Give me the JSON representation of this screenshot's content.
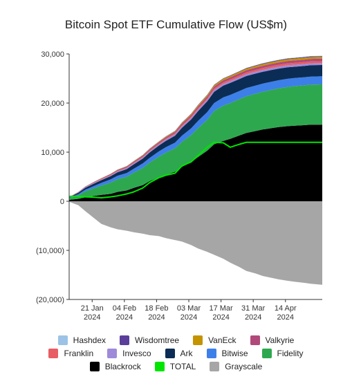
{
  "chart_data": {
    "type": "area",
    "title": "Bitcoin Spot ETF Cumulative Flow (US$m)",
    "xlabel": "",
    "ylabel": "",
    "ylim": [
      -20000,
      30000
    ],
    "yticks": [
      30000,
      20000,
      10000,
      0,
      -10000,
      -20000
    ],
    "ytick_labels": [
      "30,000",
      "20,000",
      "10,000",
      "0",
      "(10,000)",
      "(20,000)"
    ],
    "xlim": [
      "2024-01-11",
      "2024-04-30"
    ],
    "xticks": [
      {
        "date": "2024-01-21",
        "line1": "21 Jan",
        "line2": "2024"
      },
      {
        "date": "2024-02-04",
        "line1": "04 Feb",
        "line2": "2024"
      },
      {
        "date": "2024-02-18",
        "line1": "18 Feb",
        "line2": "2024"
      },
      {
        "date": "2024-03-03",
        "line1": "03 Mar",
        "line2": "2024"
      },
      {
        "date": "2024-03-17",
        "line1": "17 Mar",
        "line2": "2024"
      },
      {
        "date": "2024-03-31",
        "line1": "31 Mar",
        "line2": "2024"
      },
      {
        "date": "2024-04-14",
        "line1": "14 Apr",
        "line2": "2024"
      }
    ],
    "grid": false,
    "legend_position": "bottom",
    "dates": [
      "2024-01-11",
      "2024-01-15",
      "2024-01-18",
      "2024-01-22",
      "2024-01-25",
      "2024-01-29",
      "2024-02-01",
      "2024-02-05",
      "2024-02-08",
      "2024-02-12",
      "2024-02-15",
      "2024-02-19",
      "2024-02-22",
      "2024-02-26",
      "2024-02-29",
      "2024-03-04",
      "2024-03-07",
      "2024-03-11",
      "2024-03-14",
      "2024-03-18",
      "2024-03-21",
      "2024-03-25",
      "2024-03-28",
      "2024-04-01",
      "2024-04-04",
      "2024-04-08",
      "2024-04-11",
      "2024-04-15",
      "2024-04-18",
      "2024-04-22",
      "2024-04-25",
      "2024-04-30"
    ],
    "series": [
      {
        "name": "Blackrock",
        "color": "#000000",
        "values": [
          300,
          500,
          800,
          1100,
          1300,
          1500,
          1900,
          2200,
          2700,
          3300,
          4100,
          4900,
          5400,
          6000,
          7000,
          8000,
          9000,
          10300,
          11600,
          12300,
          12700,
          13400,
          13900,
          14300,
          14600,
          14900,
          15100,
          15300,
          15400,
          15500,
          15600,
          15600
        ]
      },
      {
        "name": "Fidelity",
        "color": "#2ea84f",
        "values": [
          300,
          700,
          1200,
          1600,
          1900,
          2300,
          2600,
          2800,
          3100,
          3500,
          3800,
          4200,
          4500,
          4800,
          5100,
          5500,
          5900,
          6300,
          6800,
          7200,
          7300,
          7400,
          7500,
          7600,
          7700,
          7800,
          7900,
          8000,
          8050,
          8100,
          8150,
          8200
        ]
      },
      {
        "name": "Bitwise",
        "color": "#3d7fe8",
        "values": [
          100,
          250,
          350,
          450,
          550,
          650,
          700,
          750,
          800,
          900,
          950,
          1050,
          1100,
          1150,
          1250,
          1350,
          1450,
          1550,
          1600,
          1650,
          1650,
          1650,
          1650,
          1650,
          1650,
          1650,
          1650,
          1650,
          1650,
          1650,
          1650,
          1650
        ]
      },
      {
        "name": "Ark",
        "color": "#0b2d55",
        "values": [
          100,
          300,
          400,
          500,
          550,
          650,
          700,
          800,
          900,
          1000,
          1100,
          1200,
          1300,
          1400,
          1600,
          1800,
          2000,
          2200,
          2300,
          2400,
          2450,
          2450,
          2450,
          2450,
          2400,
          2400,
          2350,
          2350,
          2300,
          2300,
          2300,
          2300
        ]
      },
      {
        "name": "Invesco",
        "color": "#9f8ad9",
        "values": [
          30,
          60,
          90,
          120,
          140,
          160,
          180,
          200,
          210,
          220,
          230,
          240,
          260,
          280,
          300,
          310,
          320,
          330,
          340,
          350,
          360,
          370,
          380,
          390,
          400,
          400,
          400,
          400,
          400,
          400,
          400,
          400
        ]
      },
      {
        "name": "Franklin",
        "color": "#e85d64",
        "values": [
          20,
          40,
          60,
          80,
          90,
          100,
          110,
          120,
          130,
          140,
          150,
          160,
          180,
          200,
          220,
          240,
          260,
          280,
          300,
          320,
          330,
          340,
          350,
          360,
          360,
          370,
          370,
          380,
          380,
          390,
          390,
          390
        ]
      },
      {
        "name": "Valkyrie",
        "color": "#b0497a",
        "values": [
          20,
          40,
          70,
          100,
          120,
          140,
          160,
          180,
          200,
          220,
          240,
          260,
          280,
          300,
          320,
          340,
          360,
          380,
          400,
          420,
          430,
          440,
          450,
          460,
          470,
          480,
          490,
          500,
          500,
          510,
          510,
          510
        ]
      },
      {
        "name": "VanEck",
        "color": "#c49300",
        "values": [
          10,
          20,
          30,
          40,
          50,
          60,
          70,
          80,
          90,
          100,
          110,
          120,
          130,
          140,
          170,
          200,
          230,
          260,
          280,
          300,
          310,
          320,
          330,
          340,
          350,
          350,
          360,
          360,
          370,
          370,
          370,
          370
        ]
      },
      {
        "name": "Wisdomtree",
        "color": "#5a3e9a",
        "values": [
          5,
          10,
          15,
          20,
          25,
          30,
          35,
          40,
          45,
          50,
          55,
          60,
          65,
          70,
          75,
          80,
          85,
          90,
          95,
          100,
          105,
          110,
          115,
          120,
          125,
          130,
          135,
          140,
          145,
          150,
          150,
          150
        ]
      },
      {
        "name": "Hashdex",
        "color": "#9cc3e6",
        "values": [
          5,
          8,
          10,
          12,
          14,
          16,
          18,
          20,
          22,
          24,
          26,
          28,
          30,
          32,
          34,
          36,
          38,
          40,
          42,
          44,
          46,
          48,
          50,
          52,
          54,
          56,
          58,
          60,
          62,
          64,
          64,
          64
        ]
      },
      {
        "name": "Grayscale",
        "color": "#a6a6a6",
        "values": [
          -100,
          -800,
          -2000,
          -3500,
          -4600,
          -5300,
          -5700,
          -6000,
          -6300,
          -6600,
          -6900,
          -7100,
          -7500,
          -7900,
          -8200,
          -8900,
          -9600,
          -10300,
          -10900,
          -11700,
          -12500,
          -13400,
          -14200,
          -14700,
          -15200,
          -15600,
          -15900,
          -16200,
          -16400,
          -16600,
          -16800,
          -17000
        ]
      },
      {
        "name": "TOTAL",
        "color": "#00e600",
        "values": [
          1000,
          1000,
          900,
          800,
          700,
          900,
          1100,
          1500,
          1900,
          2700,
          3800,
          4800,
          5300,
          5700,
          7200,
          8000,
          9300,
          11000,
          12000,
          11900,
          11000,
          11600,
          12000,
          12000,
          12000,
          12000,
          12000,
          12000,
          12000,
          12000,
          12000,
          12000
        ]
      }
    ]
  },
  "legend": {
    "rows": [
      [
        {
          "label": "Hashdex",
          "color": "#9cc3e6"
        },
        {
          "label": "Wisdomtree",
          "color": "#5a3e9a"
        },
        {
          "label": "VanEck",
          "color": "#c49300"
        },
        {
          "label": "Valkyrie",
          "color": "#b0497a"
        }
      ],
      [
        {
          "label": "Franklin",
          "color": "#e85d64"
        },
        {
          "label": "Invesco",
          "color": "#9f8ad9"
        },
        {
          "label": "Ark",
          "color": "#0b2d55"
        },
        {
          "label": "Bitwise",
          "color": "#3d7fe8"
        },
        {
          "label": "Fidelity",
          "color": "#2ea84f"
        }
      ],
      [
        {
          "label": "Blackrock",
          "color": "#000000"
        },
        {
          "label": "TOTAL",
          "color": "#00e600"
        },
        {
          "label": "Grayscale",
          "color": "#a6a6a6"
        }
      ]
    ]
  }
}
